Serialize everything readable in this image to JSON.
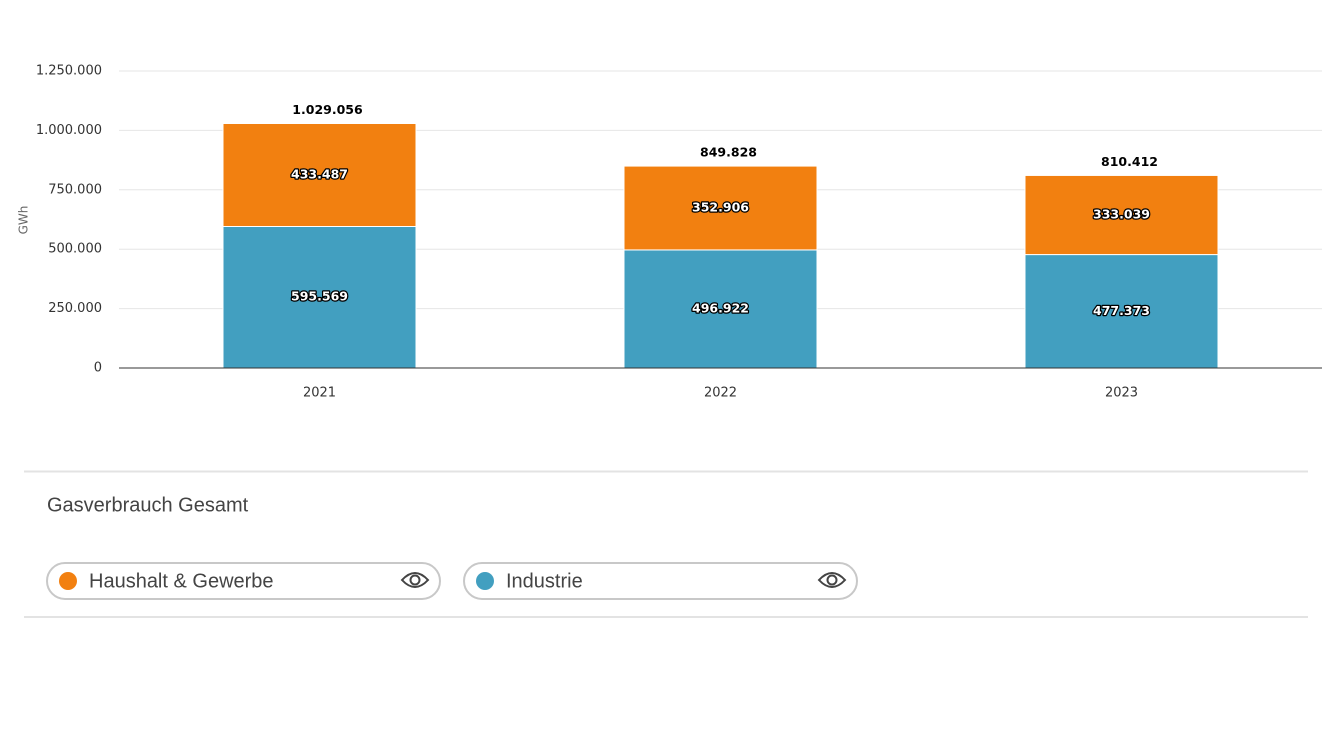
{
  "chart_data": {
    "type": "stacked_bar",
    "y_axis_label": "GWh",
    "categories": [
      "2021",
      "2022",
      "2023"
    ],
    "series": [
      {
        "name": "Haushalt & Gewerbe",
        "color": "#f28010",
        "values": [
          433487,
          352906,
          333039
        ],
        "value_labels": [
          "433.487",
          "352.906",
          "333.039"
        ]
      },
      {
        "name": "Industrie",
        "color": "#429fc0",
        "values": [
          595569,
          496922,
          477373
        ],
        "value_labels": [
          "595.569",
          "496.922",
          "477.373"
        ]
      }
    ],
    "totals": {
      "values": [
        1029056,
        849828,
        810412
      ],
      "value_labels": [
        "1.029.056",
        "849.828",
        "810.412"
      ]
    },
    "ylim": [
      0,
      1250000
    ],
    "yticks": [
      0,
      {
        "value": 250000,
        "label": "250.000"
      },
      {
        "value": 500000,
        "label": "500.000"
      },
      {
        "value": 750000,
        "label": "750.000"
      },
      {
        "value": 1000000,
        "label": "1.000.000"
      },
      {
        "value": 1250000,
        "label": "1.250.000"
      }
    ],
    "grid": true,
    "legend_title": "Gasverbrauch Gesamt",
    "legend": "bottom"
  }
}
